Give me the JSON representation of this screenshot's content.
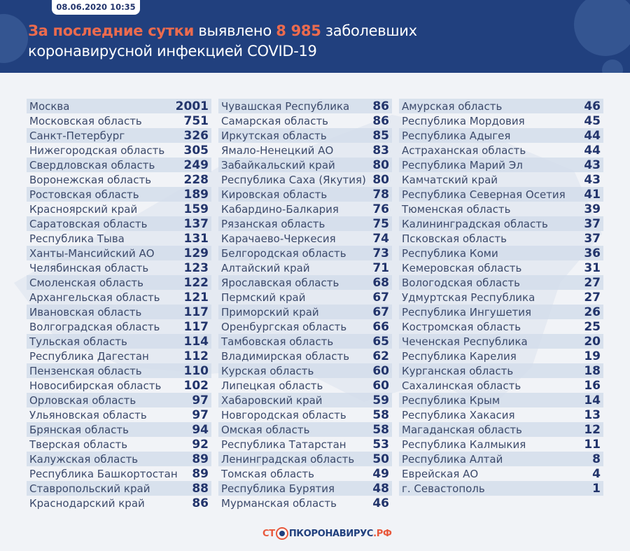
{
  "header": {
    "date": "08.06.2020 10:35",
    "title_highlight_1": "За последние сутки",
    "title_part_1": " выявлено ",
    "title_highlight_2": "8 985",
    "title_part_2": " заболевших",
    "title_line_2": "коронавирусной инфекцией COVID-19"
  },
  "colors": {
    "header_bg": "#21407e",
    "accent": "#ec6b4e",
    "value_text": "#22346b",
    "row_band": "#d4ddeb"
  },
  "columns": [
    [
      {
        "name": "Москва",
        "value": "2001"
      },
      {
        "name": "Московская область",
        "value": "751"
      },
      {
        "name": "Санкт-Петербург",
        "value": "326"
      },
      {
        "name": "Нижегородская область",
        "value": "305"
      },
      {
        "name": "Свердловская область",
        "value": "249"
      },
      {
        "name": "Воронежская область",
        "value": "228"
      },
      {
        "name": "Ростовская область",
        "value": "189"
      },
      {
        "name": "Красноярский край",
        "value": "159"
      },
      {
        "name": "Саратовская область",
        "value": "137"
      },
      {
        "name": "Республика Тыва",
        "value": "131"
      },
      {
        "name": "Ханты-Мансийский АО",
        "value": "129"
      },
      {
        "name": "Челябинская область",
        "value": "123"
      },
      {
        "name": "Смоленская область",
        "value": "122"
      },
      {
        "name": "Архангельская область",
        "value": "121"
      },
      {
        "name": "Ивановская область",
        "value": "117"
      },
      {
        "name": "Волгоградская область",
        "value": "117"
      },
      {
        "name": "Тульская область",
        "value": "114"
      },
      {
        "name": "Республика Дагестан",
        "value": "112"
      },
      {
        "name": "Пензенская область",
        "value": "110"
      },
      {
        "name": "Новосибирская область",
        "value": "102"
      },
      {
        "name": "Орловская область",
        "value": "97"
      },
      {
        "name": "Ульяновская область",
        "value": "97"
      },
      {
        "name": "Брянская область",
        "value": "94"
      },
      {
        "name": "Тверская область",
        "value": "92"
      },
      {
        "name": "Калужская область",
        "value": "89"
      },
      {
        "name": "Республика Башкортостан",
        "value": "89"
      },
      {
        "name": "Ставропольский край",
        "value": "88"
      },
      {
        "name": "Краснодарский край",
        "value": "86"
      }
    ],
    [
      {
        "name": "Чувашская Республика",
        "value": "86"
      },
      {
        "name": "Самарская область",
        "value": "86"
      },
      {
        "name": "Иркутская область",
        "value": "85"
      },
      {
        "name": "Ямало-Ненецкий АО",
        "value": "83"
      },
      {
        "name": "Забайкальский край",
        "value": "80"
      },
      {
        "name": "Республика Саха (Якутия)",
        "value": "80"
      },
      {
        "name": "Кировская область",
        "value": "78"
      },
      {
        "name": "Кабардино-Балкария",
        "value": "76"
      },
      {
        "name": "Рязанская область",
        "value": "75"
      },
      {
        "name": "Карачаево-Черкесия",
        "value": "74"
      },
      {
        "name": "Белгородская область",
        "value": "73"
      },
      {
        "name": "Алтайский край",
        "value": "71"
      },
      {
        "name": "Ярославская область",
        "value": "68"
      },
      {
        "name": "Пермский край",
        "value": "67"
      },
      {
        "name": "Приморский край",
        "value": "67"
      },
      {
        "name": "Оренбургская область",
        "value": "66"
      },
      {
        "name": "Тамбовская область",
        "value": "65"
      },
      {
        "name": "Владимирская область",
        "value": "62"
      },
      {
        "name": "Курская область",
        "value": "60"
      },
      {
        "name": "Липецкая область",
        "value": "60"
      },
      {
        "name": "Хабаровский край",
        "value": "59"
      },
      {
        "name": "Новгородская область",
        "value": "58"
      },
      {
        "name": "Омская область",
        "value": "58"
      },
      {
        "name": "Республика Татарстан",
        "value": "53"
      },
      {
        "name": "Ленинградская область",
        "value": "50"
      },
      {
        "name": "Томская область",
        "value": "49"
      },
      {
        "name": "Республика Бурятия",
        "value": "48"
      },
      {
        "name": "Мурманская область",
        "value": "46"
      }
    ],
    [
      {
        "name": "Амурская область",
        "value": "46"
      },
      {
        "name": "Республика Мордовия",
        "value": "45"
      },
      {
        "name": "Республика Адыгея",
        "value": "44"
      },
      {
        "name": "Астраханская область",
        "value": "44"
      },
      {
        "name": "Республика Марий Эл",
        "value": "43"
      },
      {
        "name": "Камчатский край",
        "value": "43"
      },
      {
        "name": "Республика Северная Осетия",
        "value": "41"
      },
      {
        "name": "Тюменская область",
        "value": "39"
      },
      {
        "name": "Калининградская область",
        "value": "37"
      },
      {
        "name": "Псковская область",
        "value": "37"
      },
      {
        "name": "Республика Коми",
        "value": "36"
      },
      {
        "name": "Кемеровская область",
        "value": "31"
      },
      {
        "name": "Вологодская область",
        "value": "27"
      },
      {
        "name": "Удмуртская Республика",
        "value": "27"
      },
      {
        "name": "Республика Ингушетия",
        "value": "26"
      },
      {
        "name": "Костромская область",
        "value": "25"
      },
      {
        "name": "Чеченская Республика",
        "value": "20"
      },
      {
        "name": "Республика Карелия",
        "value": "19"
      },
      {
        "name": "Курганская область",
        "value": "18"
      },
      {
        "name": "Сахалинская область",
        "value": "16"
      },
      {
        "name": "Республика Крым",
        "value": "14"
      },
      {
        "name": "Республика Хакасия",
        "value": "13"
      },
      {
        "name": "Магаданская область",
        "value": "12"
      },
      {
        "name": "Республика Калмыкия",
        "value": "11"
      },
      {
        "name": "Республика Алтай",
        "value": "8"
      },
      {
        "name": "Еврейская АО",
        "value": "4"
      },
      {
        "name": "г. Севастополь",
        "value": "1"
      }
    ]
  ],
  "footer": {
    "logo_part_1": "СТ",
    "logo_part_2": "ПКОРОНАВИРУС",
    "logo_part_3": ".РФ"
  }
}
